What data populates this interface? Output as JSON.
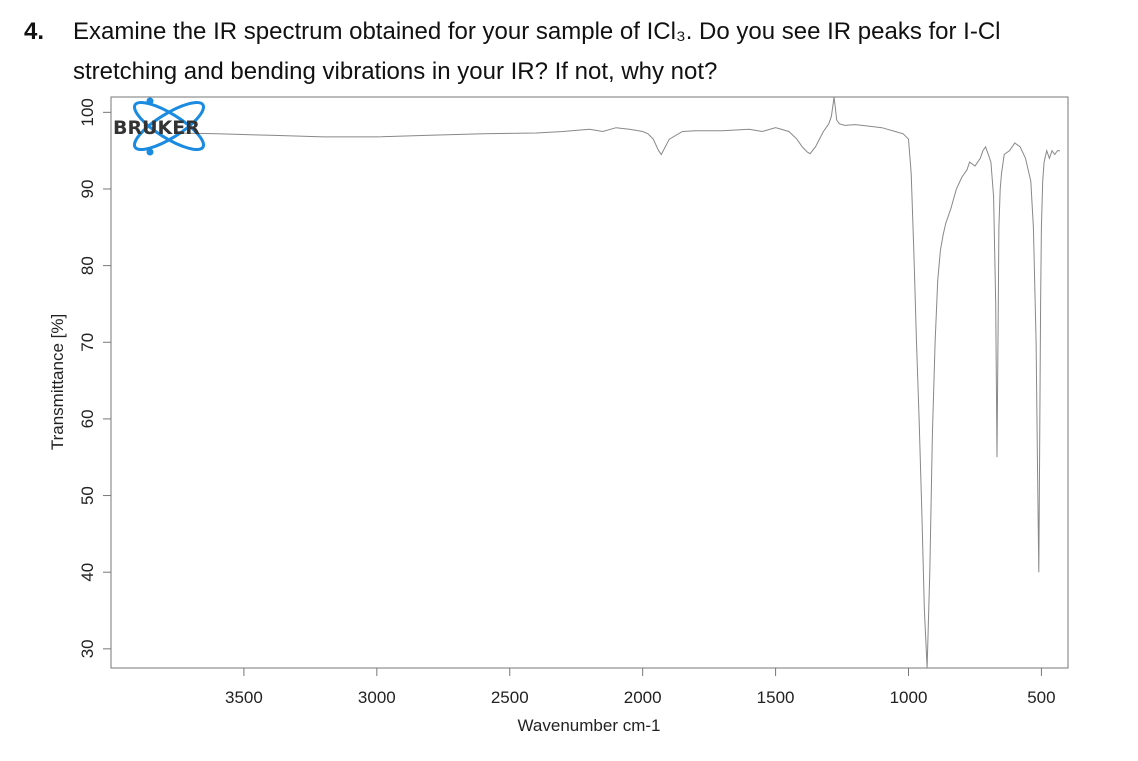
{
  "question": {
    "number": "4.",
    "line1": "Examine the IR spectrum obtained for your sample of ICl₃. Do you see IR peaks for I-Cl",
    "line2": "stretching and bending vibrations in your IR?  If not, why not?"
  },
  "logo": {
    "text": "BRUKER",
    "icon": "atom-logo-icon",
    "color": "#1a8be0"
  },
  "chart_data": {
    "type": "line",
    "title": "",
    "xlabel": "Wavenumber cm-1",
    "ylabel": "Transmittance [%]",
    "xlim": [
      4000,
      400
    ],
    "x_reversed": true,
    "ylim": [
      27.5,
      102
    ],
    "xticks": [
      3500,
      3000,
      2500,
      2000,
      1500,
      1000,
      500
    ],
    "yticks": [
      100,
      90,
      80,
      70,
      60,
      50,
      40,
      30
    ],
    "grid": false,
    "line_color": "#888888",
    "series": [
      {
        "x": [
          3750,
          3600,
          3400,
          3200,
          3000,
          2800,
          2600,
          2400,
          2300,
          2200,
          2150,
          2100,
          2050,
          2000,
          1980,
          1960,
          1940,
          1930,
          1900,
          1850,
          1800,
          1700,
          1600,
          1550,
          1500,
          1450,
          1420,
          1400,
          1380,
          1370,
          1350,
          1320,
          1300,
          1290,
          1280,
          1270,
          1260,
          1240,
          1200,
          1150,
          1100,
          1050,
          1020,
          1000,
          990,
          980,
          970,
          960,
          950,
          940,
          930,
          920,
          910,
          900,
          890,
          880,
          870,
          860,
          850,
          840,
          820,
          800,
          780,
          770,
          750,
          730,
          720,
          710,
          700,
          690,
          680,
          672,
          667,
          663,
          660,
          655,
          650,
          640,
          620,
          600,
          580,
          560,
          540,
          530,
          520,
          515,
          510,
          507,
          503,
          500,
          495,
          490,
          480,
          470,
          460,
          450,
          440,
          430
        ],
        "y": [
          97.3,
          97.2,
          97.0,
          96.8,
          96.8,
          97.0,
          97.2,
          97.3,
          97.5,
          97.8,
          97.5,
          98.0,
          97.8,
          97.5,
          97.2,
          96.5,
          95.0,
          94.5,
          96.5,
          97.5,
          97.6,
          97.6,
          97.8,
          97.5,
          98.0,
          97.5,
          96.5,
          95.5,
          94.8,
          94.6,
          95.5,
          97.5,
          98.5,
          99.5,
          102.0,
          99.0,
          98.5,
          98.3,
          98.4,
          98.2,
          98.0,
          97.5,
          97.2,
          96.5,
          92.0,
          82.0,
          70.0,
          60.0,
          48.0,
          35.0,
          27.5,
          40.0,
          58.0,
          70.0,
          78.0,
          82.0,
          84.0,
          85.5,
          86.5,
          87.5,
          90.0,
          91.5,
          92.5,
          93.5,
          93.0,
          94.0,
          95.0,
          95.5,
          94.5,
          93.5,
          89.0,
          75.0,
          55.0,
          72.0,
          85.0,
          90.0,
          92.0,
          94.5,
          95.0,
          96.0,
          95.5,
          94.0,
          91.0,
          85.0,
          70.0,
          55.0,
          40.0,
          55.0,
          75.0,
          85.0,
          91.0,
          93.5,
          95.0,
          94.0,
          95.0,
          94.5,
          95.0,
          95.0
        ]
      }
    ]
  }
}
